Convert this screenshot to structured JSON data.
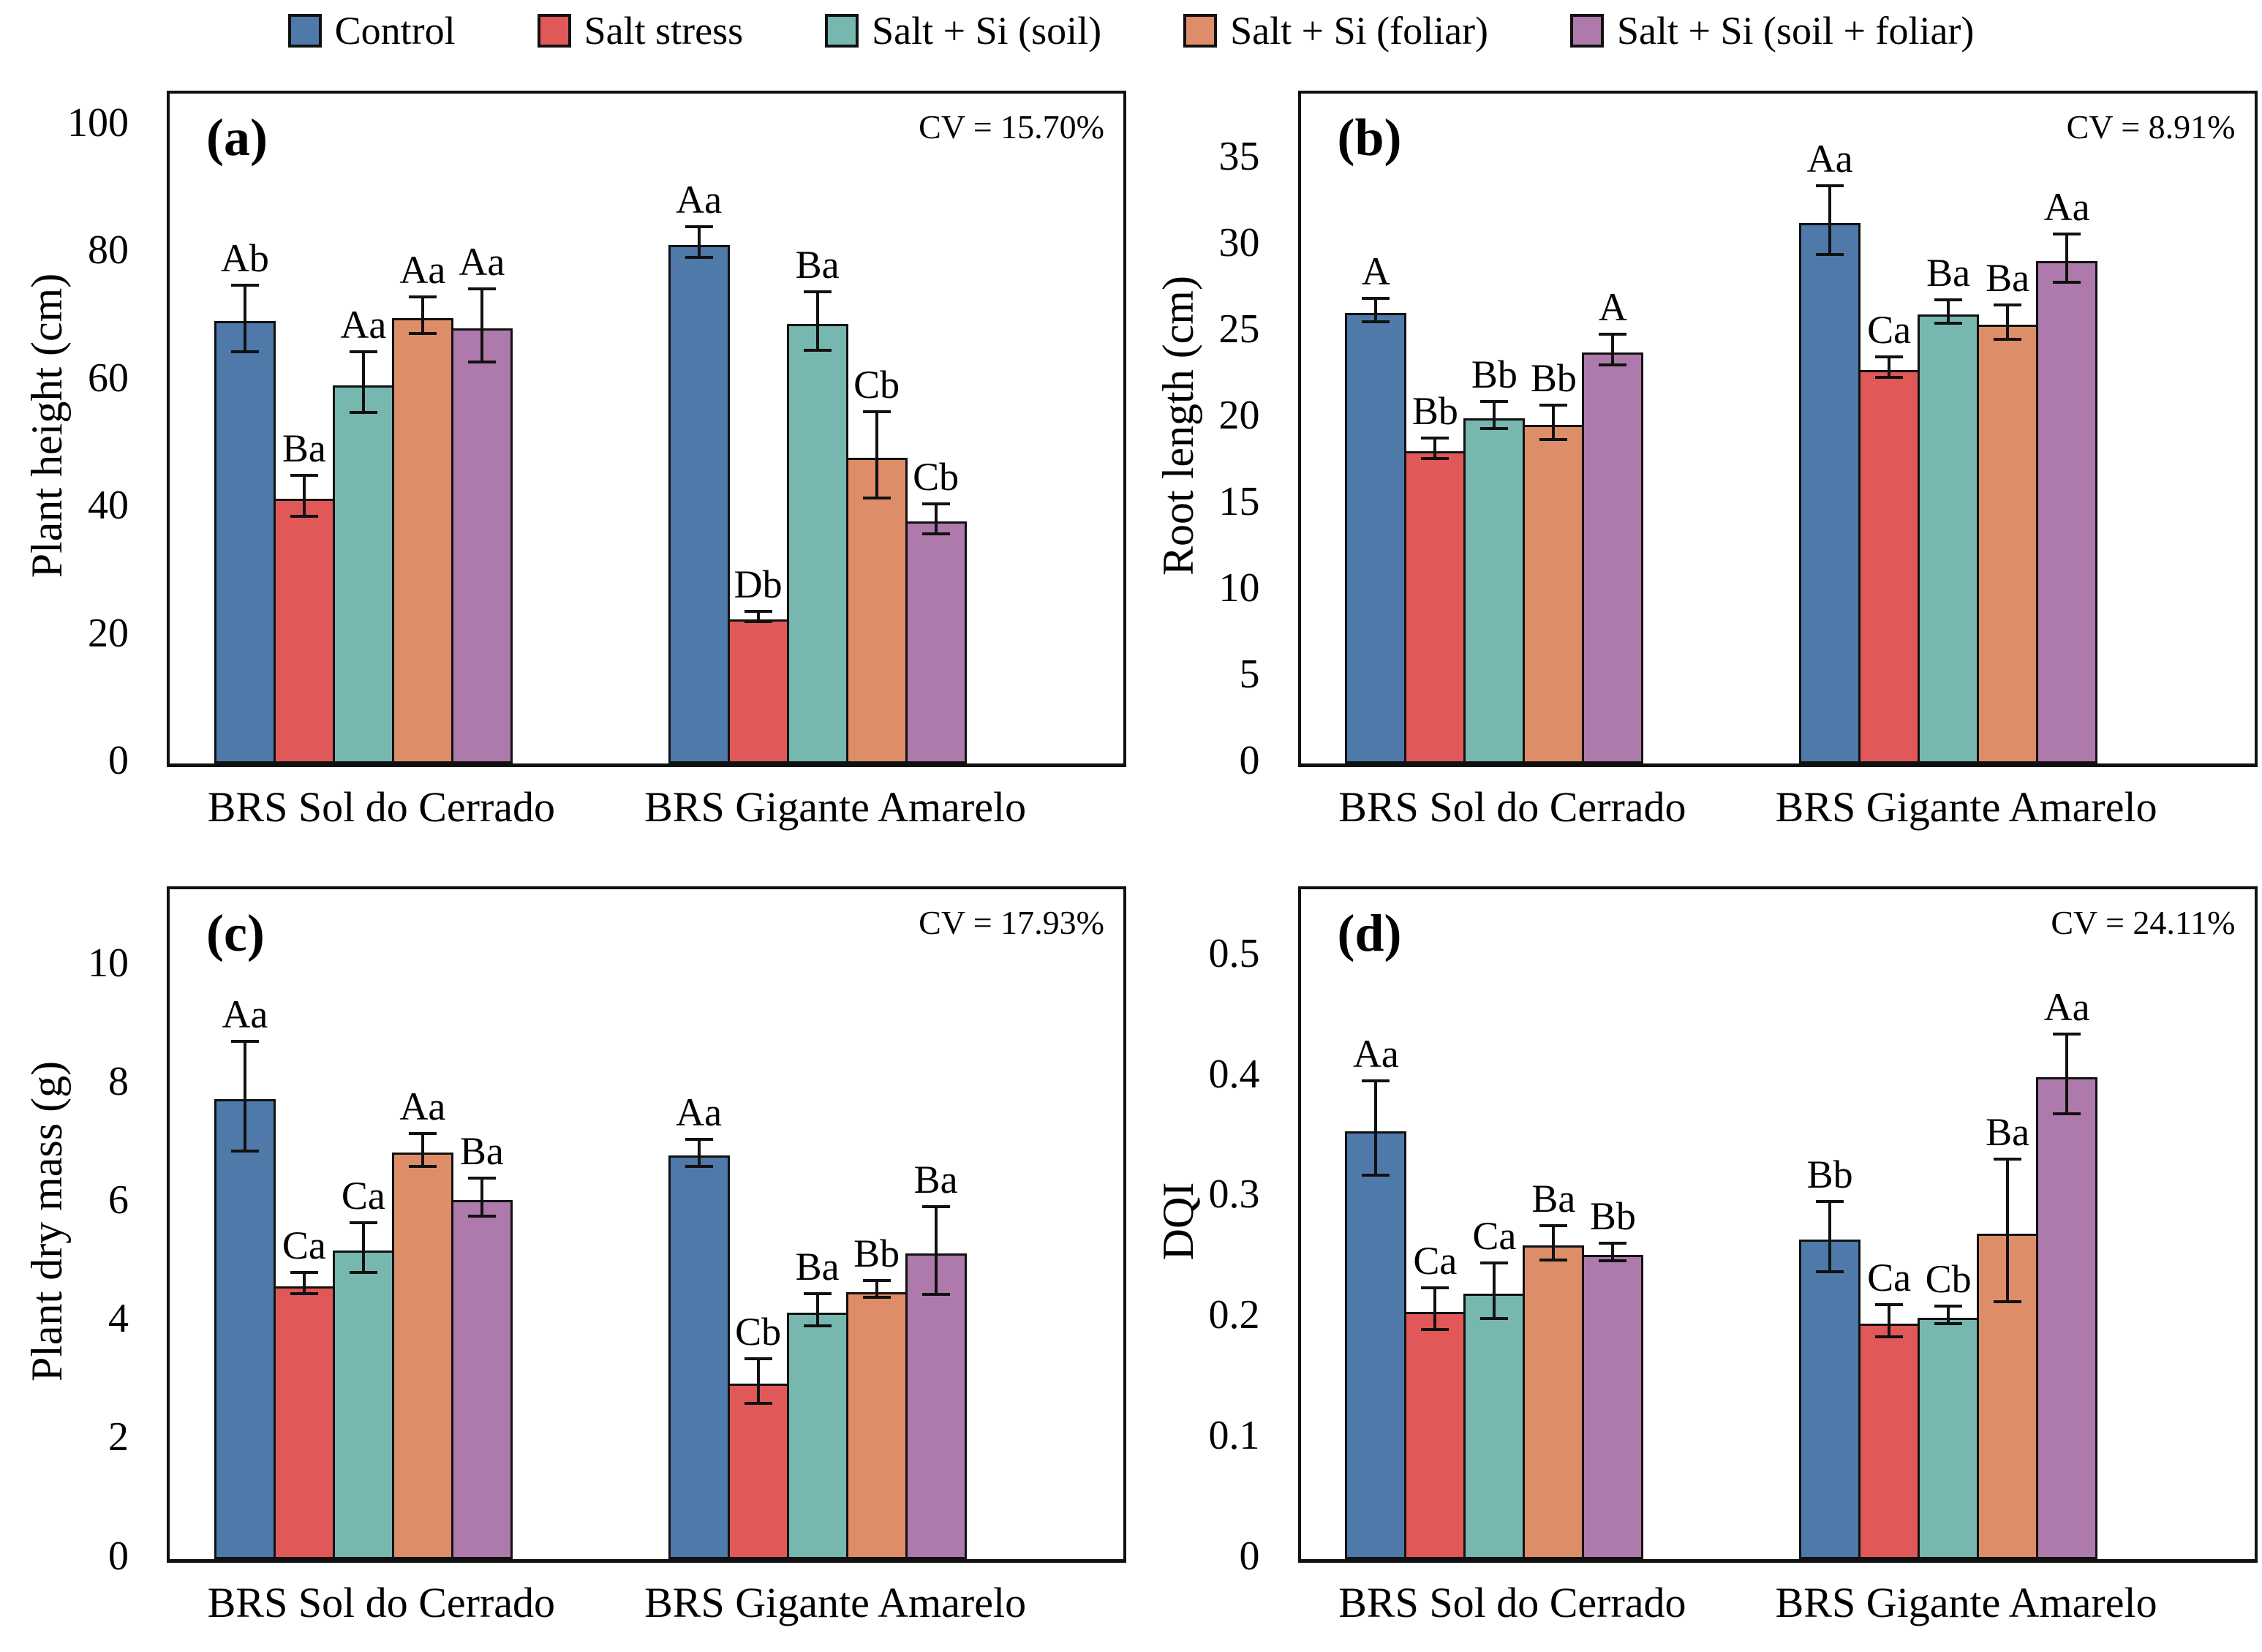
{
  "figure": {
    "legend": [
      {
        "label": "Control",
        "color": "#4E79A8"
      },
      {
        "label": "Salt stress",
        "color": "#E05858"
      },
      {
        "label": "Salt + Si (soil)",
        "color": "#76B7B0"
      },
      {
        "label": "Salt + Si (foliar)",
        "color": "#DE8D69"
      },
      {
        "label": "Salt + Si (soil + foliar)",
        "color": "#AE79AB"
      }
    ],
    "axis_color": "#111111"
  },
  "chart_data": [
    {
      "type": "bar",
      "panel_label": "(a)",
      "ylabel": "Plant height (cm)",
      "cv": "CV = 15.70%",
      "ylim": [
        0,
        105
      ],
      "yticks": [
        0,
        20,
        40,
        60,
        80,
        100
      ],
      "categories": [
        "BRS Sol do Cerrado",
        "BRS Gigante Amarelo"
      ],
      "legend_position": "top",
      "grid": false,
      "series": [
        {
          "name": "Control",
          "values": [
            69.3,
            81.3
          ],
          "errors": [
            5.0,
            2.2
          ],
          "letters": [
            "Ab",
            "Aa"
          ]
        },
        {
          "name": "Salt stress",
          "values": [
            41.5,
            22.6
          ],
          "errors": [
            3.0,
            0.6
          ],
          "letters": [
            "Ba",
            "Db"
          ]
        },
        {
          "name": "Salt + Si (soil)",
          "values": [
            59.3,
            68.9
          ],
          "errors": [
            4.5,
            4.4
          ],
          "letters": [
            "Aa",
            "Ba"
          ]
        },
        {
          "name": "Salt + Si (foliar)",
          "values": [
            69.8,
            47.9
          ],
          "errors": [
            2.6,
            6.5
          ],
          "letters": [
            "Aa",
            "Cb"
          ]
        },
        {
          "name": "Salt + Si (soil + foliar)",
          "values": [
            68.2,
            37.9
          ],
          "errors": [
            5.5,
            2.1
          ],
          "letters": [
            "Aa",
            "Cb"
          ]
        }
      ]
    },
    {
      "type": "bar",
      "panel_label": "(b)",
      "ylabel": "Root length (cm)",
      "cv": "CV = 8.91%",
      "ylim": [
        0,
        38.8
      ],
      "yticks": [
        0,
        5,
        10,
        15,
        20,
        25,
        30,
        35
      ],
      "categories": [
        "BRS Sol do Cerrado",
        "BRS Gigante Amarelo"
      ],
      "legend_position": "top",
      "grid": false,
      "series": [
        {
          "name": "Control",
          "values": [
            26.1,
            31.3
          ],
          "errors": [
            0.6,
            1.9
          ],
          "letters": [
            "A",
            "Aa"
          ]
        },
        {
          "name": "Salt stress",
          "values": [
            18.1,
            22.8
          ],
          "errors": [
            0.5,
            0.5
          ],
          "letters": [
            "Bb",
            "Ca"
          ]
        },
        {
          "name": "Salt + Si (soil)",
          "values": [
            20.0,
            26.0
          ],
          "errors": [
            0.7,
            0.6
          ],
          "letters": [
            "Bb",
            "Ba"
          ]
        },
        {
          "name": "Salt + Si (foliar)",
          "values": [
            19.6,
            25.4
          ],
          "errors": [
            0.9,
            0.9
          ],
          "letters": [
            "Bb",
            "Ba"
          ]
        },
        {
          "name": "Salt + Si (soil + foliar)",
          "values": [
            23.8,
            29.1
          ],
          "errors": [
            0.8,
            1.3
          ],
          "letters": [
            "A",
            "Aa"
          ]
        }
      ]
    },
    {
      "type": "bar",
      "panel_label": "(c)",
      "ylabel": "Plant dry mass (g)",
      "cv": "CV = 17.93%",
      "ylim": [
        0,
        11.3
      ],
      "yticks": [
        0,
        2,
        4,
        6,
        8,
        10
      ],
      "categories": [
        "BRS Sol do Cerrado",
        "BRS Gigante Amarelo"
      ],
      "legend_position": "top",
      "grid": false,
      "series": [
        {
          "name": "Control",
          "values": [
            7.75,
            6.8
          ],
          "errors": [
            0.9,
            0.2
          ],
          "letters": [
            "Aa",
            "Aa"
          ]
        },
        {
          "name": "Salt stress",
          "values": [
            4.6,
            2.95
          ],
          "errors": [
            0.15,
            0.35
          ],
          "letters": [
            "Ca",
            "Cb"
          ]
        },
        {
          "name": "Salt + Si (soil)",
          "values": [
            5.2,
            4.15
          ],
          "errors": [
            0.4,
            0.25
          ],
          "letters": [
            "Ca",
            "Ba"
          ]
        },
        {
          "name": "Salt + Si (foliar)",
          "values": [
            6.85,
            4.5
          ],
          "errors": [
            0.25,
            0.12
          ],
          "letters": [
            "Aa",
            "Bb"
          ]
        },
        {
          "name": "Salt + Si (soil + foliar)",
          "values": [
            6.05,
            5.15
          ],
          "errors": [
            0.3,
            0.72
          ],
          "letters": [
            "Ba",
            "Ba"
          ]
        }
      ]
    },
    {
      "type": "bar",
      "panel_label": "(d)",
      "ylabel": "DQI",
      "cv": "CV = 24.11%",
      "ylim": [
        0,
        0.556
      ],
      "yticks": [
        0,
        0.1,
        0.2,
        0.3,
        0.4,
        0.5
      ],
      "categories": [
        "BRS Sol do Cerrado",
        "BRS Gigante Amarelo"
      ],
      "legend_position": "top",
      "grid": false,
      "series": [
        {
          "name": "Control",
          "values": [
            0.355,
            0.265
          ],
          "errors": [
            0.038,
            0.028
          ],
          "letters": [
            "Aa",
            "Bb"
          ]
        },
        {
          "name": "Salt stress",
          "values": [
            0.205,
            0.195
          ],
          "errors": [
            0.016,
            0.012
          ],
          "letters": [
            "Ca",
            "Ca"
          ]
        },
        {
          "name": "Salt + Si (soil)",
          "values": [
            0.22,
            0.2
          ],
          "errors": [
            0.022,
            0.006
          ],
          "letters": [
            "Ca",
            "Cb"
          ]
        },
        {
          "name": "Salt + Si (foliar)",
          "values": [
            0.26,
            0.27
          ],
          "errors": [
            0.013,
            0.058
          ],
          "letters": [
            "Ba",
            "Ba"
          ]
        },
        {
          "name": "Salt + Si (soil + foliar)",
          "values": [
            0.252,
            0.4
          ],
          "errors": [
            0.006,
            0.032
          ],
          "letters": [
            "Bb",
            "Aa"
          ]
        }
      ]
    }
  ]
}
